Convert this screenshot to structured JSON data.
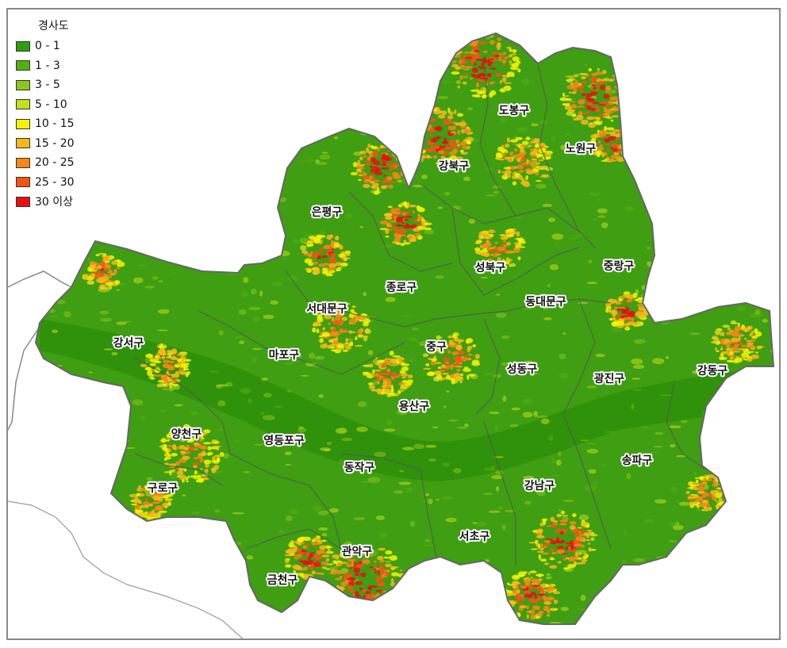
{
  "legend": {
    "title": "경사도",
    "items": [
      {
        "label": "0 - 1",
        "color": "#2e9e0e"
      },
      {
        "label": "1 - 3",
        "color": "#54b011"
      },
      {
        "label": "3 - 5",
        "color": "#8bc61a"
      },
      {
        "label": "5 - 10",
        "color": "#c3df1e"
      },
      {
        "label": "10 - 15",
        "color": "#f4f400"
      },
      {
        "label": "15 - 20",
        "color": "#f6b81a"
      },
      {
        "label": "20 - 25",
        "color": "#f48716"
      },
      {
        "label": "25 - 30",
        "color": "#f25614"
      },
      {
        "label": "30  이상",
        "color": "#e81010"
      }
    ]
  },
  "districts": [
    {
      "id": "dobong",
      "name": "도봉구"
    },
    {
      "id": "nowon",
      "name": "노원구"
    },
    {
      "id": "gangbuk",
      "name": "강북구"
    },
    {
      "id": "eunpyeong",
      "name": "은평구"
    },
    {
      "id": "seongbuk",
      "name": "성북구"
    },
    {
      "id": "jungnang",
      "name": "중랑구"
    },
    {
      "id": "jongno",
      "name": "종로구"
    },
    {
      "id": "seodaemun",
      "name": "서대문구"
    },
    {
      "id": "dongdaemun",
      "name": "동대문구"
    },
    {
      "id": "gangseo",
      "name": "강서구"
    },
    {
      "id": "mapo",
      "name": "마포구"
    },
    {
      "id": "jung",
      "name": "중구"
    },
    {
      "id": "seongdong",
      "name": "성동구"
    },
    {
      "id": "gwangjin",
      "name": "광진구"
    },
    {
      "id": "gangdong",
      "name": "강동구"
    },
    {
      "id": "yongsan",
      "name": "용산구"
    },
    {
      "id": "yangcheon",
      "name": "양천구"
    },
    {
      "id": "yeongdeungpo",
      "name": "영등포구"
    },
    {
      "id": "songpa",
      "name": "송파구"
    },
    {
      "id": "dongjak",
      "name": "동작구"
    },
    {
      "id": "guro",
      "name": "구로구"
    },
    {
      "id": "gangnam",
      "name": "강남구"
    },
    {
      "id": "seocho",
      "name": "서초구"
    },
    {
      "id": "gwanak",
      "name": "관악구"
    },
    {
      "id": "geumcheon",
      "name": "금천구"
    }
  ]
}
